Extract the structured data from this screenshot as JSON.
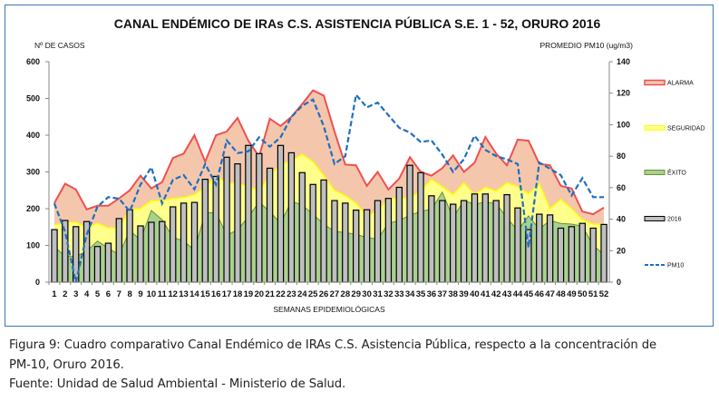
{
  "chart_data": {
    "type": "bar",
    "title": "CANAL ENDÉMICO DE IRAs C.S. ASISTENCIA PÚBLICA S.E. 1 - 52,  ORURO 2016",
    "xlabel": "SEMANAS EPIDEMIOLÓGICAS",
    "ylabel": "Nº DE CASOS",
    "y2label": "PROMEDIO PM10 (ug/m3)",
    "ylim": [
      0,
      600
    ],
    "y2lim": [
      0,
      140
    ],
    "yticks": [
      "0",
      "100",
      "200",
      "300",
      "400",
      "500",
      "600"
    ],
    "y2ticks": [
      "0",
      "20",
      "40",
      "60",
      "80",
      "100",
      "120",
      "140"
    ],
    "categories": [
      "1",
      "2",
      "3",
      "4",
      "5",
      "6",
      "7",
      "8",
      "9",
      "10",
      "11",
      "12",
      "13",
      "14",
      "15",
      "16",
      "17",
      "18",
      "19",
      "20",
      "21",
      "22",
      "23",
      "24",
      "25",
      "26",
      "27",
      "28",
      "29",
      "30",
      "31",
      "32",
      "33",
      "34",
      "35",
      "36",
      "37",
      "38",
      "39",
      "40",
      "41",
      "42",
      "43",
      "44",
      "45",
      "46",
      "47",
      "48",
      "49",
      "50",
      "51",
      "52"
    ],
    "legend_position": "right",
    "grid": false,
    "series": [
      {
        "name": "ALARMA",
        "kind": "area",
        "axis": "left",
        "color": "#f4c7ad",
        "line": "#ee5050",
        "values": [
          215,
          268,
          252,
          198,
          208,
          208,
          228,
          250,
          290,
          255,
          272,
          338,
          350,
          400,
          328,
          400,
          410,
          447,
          385,
          342,
          445,
          425,
          450,
          485,
          522,
          508,
          410,
          320,
          318,
          262,
          300,
          252,
          282,
          340,
          300,
          290,
          310,
          345,
          300,
          325,
          395,
          350,
          318,
          388,
          385,
          322,
          318,
          262,
          255,
          192,
          185,
          203
        ]
      },
      {
        "name": "SEGURIDAD",
        "kind": "area",
        "axis": "left",
        "color": "#ffff8c",
        "line": "#ffff00",
        "values": [
          155,
          163,
          163,
          148,
          160,
          148,
          148,
          198,
          200,
          222,
          222,
          228,
          230,
          238,
          258,
          290,
          270,
          270,
          260,
          250,
          290,
          320,
          330,
          348,
          328,
          290,
          250,
          235,
          215,
          180,
          195,
          228,
          228,
          230,
          248,
          280,
          260,
          238,
          270,
          238,
          258,
          248,
          270,
          260,
          240,
          268,
          200,
          225,
          200,
          170,
          158,
          157
        ]
      },
      {
        "name": "ÉXITO",
        "kind": "area",
        "axis": "left",
        "color": "#a9d18e",
        "line": "#6b8e3a",
        "values": [
          97,
          70,
          70,
          84,
          112,
          92,
          75,
          140,
          115,
          195,
          170,
          122,
          112,
          87,
          188,
          190,
          128,
          142,
          178,
          218,
          192,
          160,
          220,
          210,
          185,
          158,
          138,
          135,
          130,
          122,
          117,
          160,
          168,
          182,
          193,
          198,
          245,
          175,
          222,
          212,
          218,
          214,
          175,
          140,
          180,
          145,
          168,
          160,
          158,
          152,
          100,
          75
        ]
      },
      {
        "name": "2016",
        "kind": "bar",
        "axis": "left",
        "color": "#bfbfbf",
        "line": "#000000",
        "values": [
          143,
          168,
          151,
          165,
          97,
          106,
          173,
          197,
          153,
          163,
          165,
          205,
          215,
          217,
          280,
          288,
          340,
          322,
          372,
          350,
          310,
          372,
          352,
          298,
          266,
          278,
          222,
          215,
          196,
          197,
          222,
          228,
          258,
          318,
          298,
          235,
          222,
          212,
          222,
          240,
          240,
          222,
          238,
          202,
          143,
          185,
          183,
          147,
          151,
          160,
          147,
          157
        ]
      },
      {
        "name": "PM10",
        "kind": "line",
        "axis": "right",
        "color": "#1f6fbf",
        "dash": true,
        "values": [
          50,
          32,
          0,
          30,
          48,
          54,
          53,
          45,
          62,
          73,
          50,
          65,
          68,
          59,
          75,
          62,
          90,
          82,
          83,
          92,
          86,
          92,
          105,
          112,
          116,
          99,
          75,
          80,
          119,
          111,
          114,
          106,
          98,
          95,
          89,
          90,
          81,
          70,
          78,
          93,
          84,
          80,
          78,
          75,
          22,
          76,
          72,
          68,
          55,
          66,
          54,
          54
        ]
      }
    ]
  },
  "caption": {
    "line1": "Figura 9: Cuadro comparativo Canal Endémico de IRAs C.S. Asistencia Pública, respecto a la concentración de",
    "line2": "PM-10, Oruro 2016.",
    "source": "Fuente: Unidad de Salud Ambiental - Ministerio de Salud."
  }
}
